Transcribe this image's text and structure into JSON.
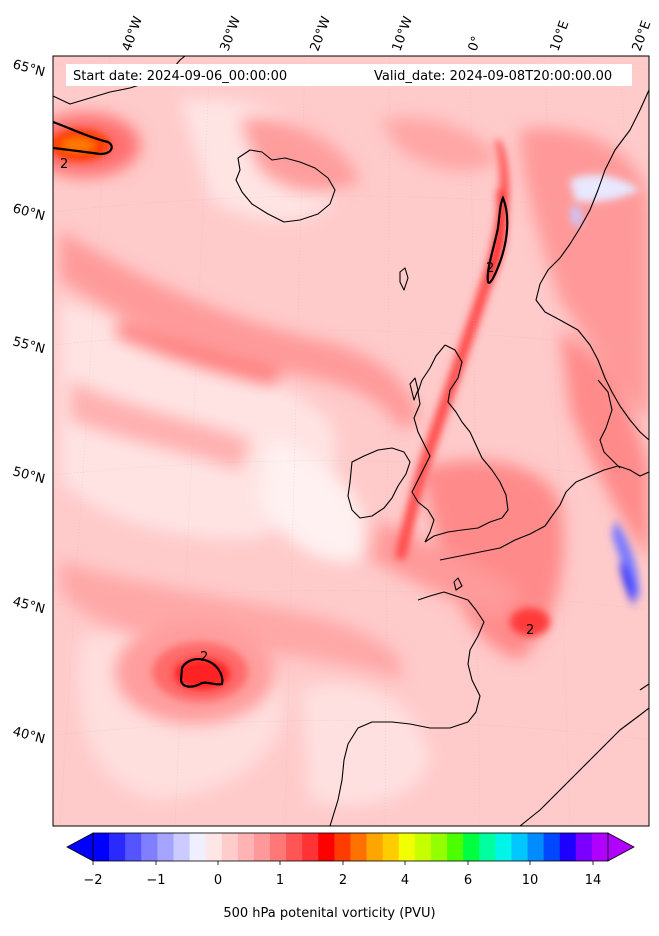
{
  "header": {
    "start_date": "Start date: 2024-09-06_00:00:00",
    "valid_date": "Valid_date: 2024-09-08T20:00:00.00"
  },
  "longitude_labels": [
    "40°W",
    "30°W",
    "20°W",
    "10°W",
    "0°",
    "10°E",
    "20°E"
  ],
  "latitude_labels": [
    "65°N",
    "60°N",
    "55°N",
    "50°N",
    "45°N",
    "40°N"
  ],
  "contour_label": "2",
  "colorbar": {
    "label": "500 hPa potenital vorticity (PVU)",
    "ticks": [
      "−2",
      "−1",
      "0",
      "1",
      "2",
      "4",
      "6",
      "10",
      "14"
    ],
    "colors": [
      "#0000ff",
      "#2a2aff",
      "#5555ff",
      "#7f7fff",
      "#a5a5ff",
      "#cbcbff",
      "#efefff",
      "#ffe6e6",
      "#ffcccc",
      "#ffb3b3",
      "#ff9999",
      "#ff7777",
      "#ff5555",
      "#ff3333",
      "#ff0000",
      "#ff3c00",
      "#ff7200",
      "#ffa500",
      "#ffcc00",
      "#f2ff00",
      "#c6ff00",
      "#94ff00",
      "#4cff00",
      "#00ff40",
      "#00ff9e",
      "#00f5e8",
      "#00c8ff",
      "#008cff",
      "#0048ff",
      "#1e00ff",
      "#7a00ff",
      "#b000ff"
    ]
  }
}
